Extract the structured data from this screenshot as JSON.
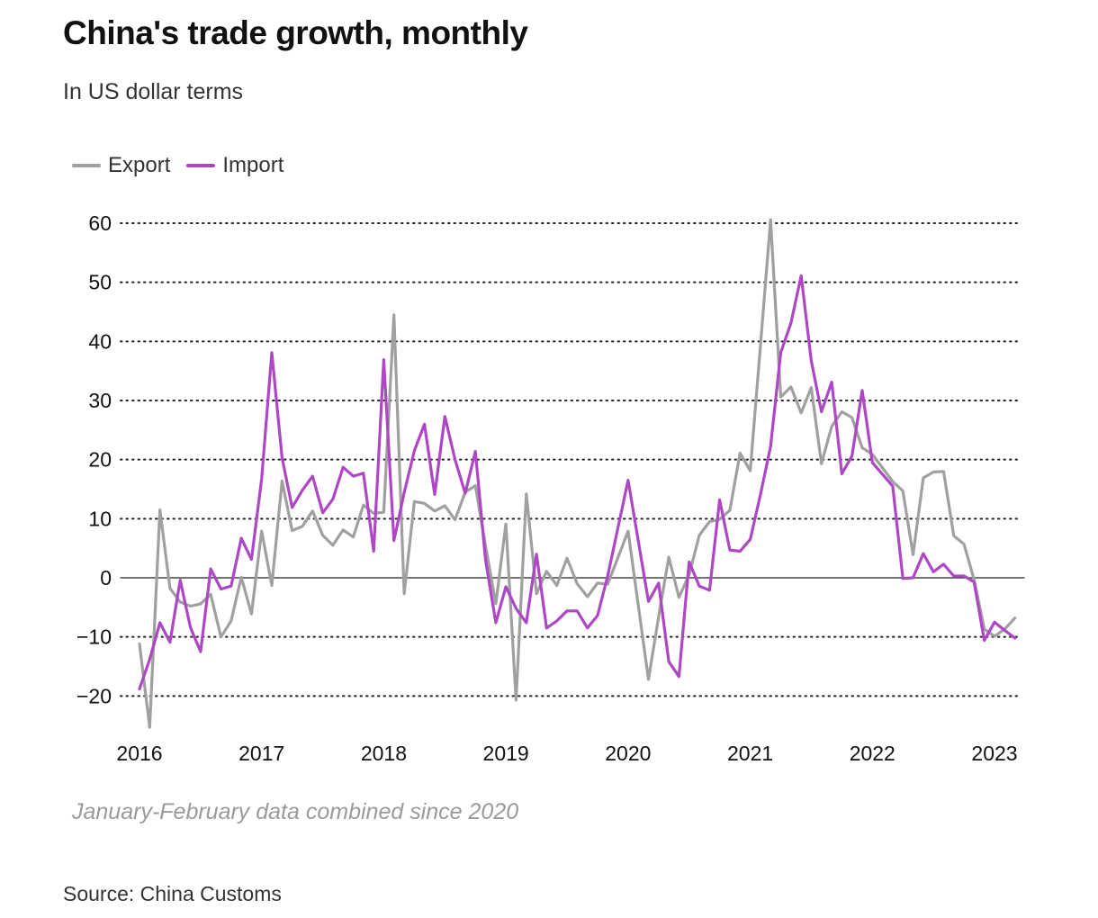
{
  "title": "China's trade growth, monthly",
  "subtitle": "In US dollar terms",
  "note": "January-February data combined since 2020",
  "source": "Source: China Customs",
  "chart_data": {
    "type": "line",
    "ylim": [
      -25,
      60
    ],
    "y_ticks": [
      60,
      50,
      40,
      30,
      20,
      10,
      0,
      -10,
      -20
    ],
    "y_tick_labels": [
      "60",
      "50",
      "40",
      "30",
      "20",
      "10",
      "0",
      "−10",
      "−20"
    ],
    "x_ticks": [
      2016,
      2017,
      2018,
      2019,
      2020,
      2021,
      2022,
      2023
    ],
    "x_tick_labels": [
      "2016",
      "2017",
      "2018",
      "2019",
      "2020",
      "2021",
      "2022",
      "2023"
    ],
    "grid": "horizontal dotted",
    "legend_position": "top-left",
    "series": [
      {
        "name": "Export",
        "color": "#a0a0a0",
        "points": [
          [
            2016.0,
            -11.2
          ],
          [
            2016.083,
            -25.3
          ],
          [
            2016.167,
            11.5
          ],
          [
            2016.25,
            -1.8
          ],
          [
            2016.333,
            -4.1
          ],
          [
            2016.417,
            -4.8
          ],
          [
            2016.5,
            -4.4
          ],
          [
            2016.583,
            -2.8
          ],
          [
            2016.667,
            -10.0
          ],
          [
            2016.75,
            -7.3
          ],
          [
            2016.833,
            0.1
          ],
          [
            2016.917,
            -6.1
          ],
          [
            2017.0,
            7.9
          ],
          [
            2017.083,
            -1.3
          ],
          [
            2017.167,
            16.4
          ],
          [
            2017.25,
            8.0
          ],
          [
            2017.333,
            8.7
          ],
          [
            2017.417,
            11.3
          ],
          [
            2017.5,
            7.2
          ],
          [
            2017.583,
            5.5
          ],
          [
            2017.667,
            8.1
          ],
          [
            2017.75,
            6.9
          ],
          [
            2017.833,
            12.3
          ],
          [
            2017.917,
            10.9
          ],
          [
            2018.0,
            11.1
          ],
          [
            2018.083,
            44.5
          ],
          [
            2018.167,
            -2.7
          ],
          [
            2018.25,
            12.9
          ],
          [
            2018.333,
            12.6
          ],
          [
            2018.417,
            11.3
          ],
          [
            2018.5,
            12.2
          ],
          [
            2018.583,
            9.8
          ],
          [
            2018.667,
            14.5
          ],
          [
            2018.75,
            15.6
          ],
          [
            2018.833,
            5.4
          ],
          [
            2018.917,
            -4.4
          ],
          [
            2019.0,
            9.1
          ],
          [
            2019.083,
            -20.7
          ],
          [
            2019.167,
            14.2
          ],
          [
            2019.25,
            -2.7
          ],
          [
            2019.333,
            1.1
          ],
          [
            2019.417,
            -1.3
          ],
          [
            2019.5,
            3.3
          ],
          [
            2019.583,
            -1.0
          ],
          [
            2019.667,
            -3.2
          ],
          [
            2019.75,
            -0.9
          ],
          [
            2019.833,
            -1.1
          ],
          [
            2020.0,
            7.9
          ],
          [
            2020.167,
            -17.2
          ],
          [
            2020.25,
            -6.6
          ],
          [
            2020.333,
            3.5
          ],
          [
            2020.417,
            -3.3
          ],
          [
            2020.5,
            0.5
          ],
          [
            2020.583,
            7.2
          ],
          [
            2020.667,
            9.5
          ],
          [
            2020.75,
            9.9
          ],
          [
            2020.833,
            11.4
          ],
          [
            2020.917,
            21.1
          ],
          [
            2021.0,
            18.1
          ],
          [
            2021.083,
            39.0
          ],
          [
            2021.167,
            60.6
          ],
          [
            2021.25,
            30.6
          ],
          [
            2021.333,
            32.3
          ],
          [
            2021.417,
            27.9
          ],
          [
            2021.5,
            32.2
          ],
          [
            2021.583,
            19.3
          ],
          [
            2021.667,
            25.6
          ],
          [
            2021.75,
            28.1
          ],
          [
            2021.833,
            27.1
          ],
          [
            2021.917,
            22.0
          ],
          [
            2022.0,
            20.9
          ],
          [
            2022.167,
            16.3
          ],
          [
            2022.25,
            14.7
          ],
          [
            2022.333,
            3.9
          ],
          [
            2022.417,
            16.9
          ],
          [
            2022.5,
            17.9
          ],
          [
            2022.583,
            18.0
          ],
          [
            2022.667,
            7.1
          ],
          [
            2022.75,
            5.7
          ],
          [
            2022.833,
            -0.3
          ],
          [
            2022.917,
            -8.7
          ],
          [
            2023.0,
            -9.9
          ],
          [
            2023.083,
            -8.7
          ],
          [
            2023.167,
            -6.8
          ]
        ]
      },
      {
        "name": "Import",
        "color": "#ad47c4",
        "points": [
          [
            2016.0,
            -18.8
          ],
          [
            2016.083,
            -13.8
          ],
          [
            2016.167,
            -7.6
          ],
          [
            2016.25,
            -10.9
          ],
          [
            2016.333,
            -0.4
          ],
          [
            2016.417,
            -8.4
          ],
          [
            2016.5,
            -12.5
          ],
          [
            2016.583,
            1.5
          ],
          [
            2016.667,
            -1.9
          ],
          [
            2016.75,
            -1.4
          ],
          [
            2016.833,
            6.7
          ],
          [
            2016.917,
            3.1
          ],
          [
            2017.0,
            16.7
          ],
          [
            2017.083,
            38.1
          ],
          [
            2017.167,
            20.3
          ],
          [
            2017.25,
            11.9
          ],
          [
            2017.333,
            14.8
          ],
          [
            2017.417,
            17.2
          ],
          [
            2017.5,
            11.0
          ],
          [
            2017.583,
            13.3
          ],
          [
            2017.667,
            18.7
          ],
          [
            2017.75,
            17.2
          ],
          [
            2017.833,
            17.7
          ],
          [
            2017.917,
            4.5
          ],
          [
            2018.0,
            36.9
          ],
          [
            2018.083,
            6.3
          ],
          [
            2018.167,
            14.4
          ],
          [
            2018.25,
            21.5
          ],
          [
            2018.333,
            26.0
          ],
          [
            2018.417,
            14.1
          ],
          [
            2018.5,
            27.3
          ],
          [
            2018.583,
            20.0
          ],
          [
            2018.667,
            14.3
          ],
          [
            2018.75,
            21.4
          ],
          [
            2018.833,
            3.0
          ],
          [
            2018.917,
            -7.6
          ],
          [
            2019.0,
            -1.5
          ],
          [
            2019.083,
            -5.2
          ],
          [
            2019.167,
            -7.6
          ],
          [
            2019.25,
            4.0
          ],
          [
            2019.333,
            -8.5
          ],
          [
            2019.417,
            -7.3
          ],
          [
            2019.5,
            -5.6
          ],
          [
            2019.583,
            -5.6
          ],
          [
            2019.667,
            -8.5
          ],
          [
            2019.75,
            -6.4
          ],
          [
            2019.833,
            0.3
          ],
          [
            2020.0,
            16.5
          ],
          [
            2020.167,
            -4.0
          ],
          [
            2020.25,
            -0.9
          ],
          [
            2020.333,
            -14.2
          ],
          [
            2020.417,
            -16.7
          ],
          [
            2020.5,
            2.7
          ],
          [
            2020.583,
            -1.4
          ],
          [
            2020.667,
            -2.1
          ],
          [
            2020.75,
            13.2
          ],
          [
            2020.833,
            4.7
          ],
          [
            2020.917,
            4.5
          ],
          [
            2021.0,
            6.5
          ],
          [
            2021.083,
            14.0
          ],
          [
            2021.167,
            22.2
          ],
          [
            2021.25,
            38.1
          ],
          [
            2021.333,
            43.1
          ],
          [
            2021.417,
            51.1
          ],
          [
            2021.5,
            36.7
          ],
          [
            2021.583,
            28.1
          ],
          [
            2021.667,
            33.1
          ],
          [
            2021.75,
            17.6
          ],
          [
            2021.833,
            20.6
          ],
          [
            2021.917,
            31.7
          ],
          [
            2022.0,
            19.5
          ],
          [
            2022.167,
            15.5
          ],
          [
            2022.25,
            -0.1
          ],
          [
            2022.333,
            0.0
          ],
          [
            2022.417,
            4.1
          ],
          [
            2022.5,
            1.0
          ],
          [
            2022.583,
            2.3
          ],
          [
            2022.667,
            0.3
          ],
          [
            2022.75,
            0.3
          ],
          [
            2022.833,
            -0.7
          ],
          [
            2022.917,
            -10.6
          ],
          [
            2023.0,
            -7.5
          ],
          [
            2023.083,
            -8.9
          ],
          [
            2023.167,
            -10.2
          ]
        ]
      }
    ]
  }
}
